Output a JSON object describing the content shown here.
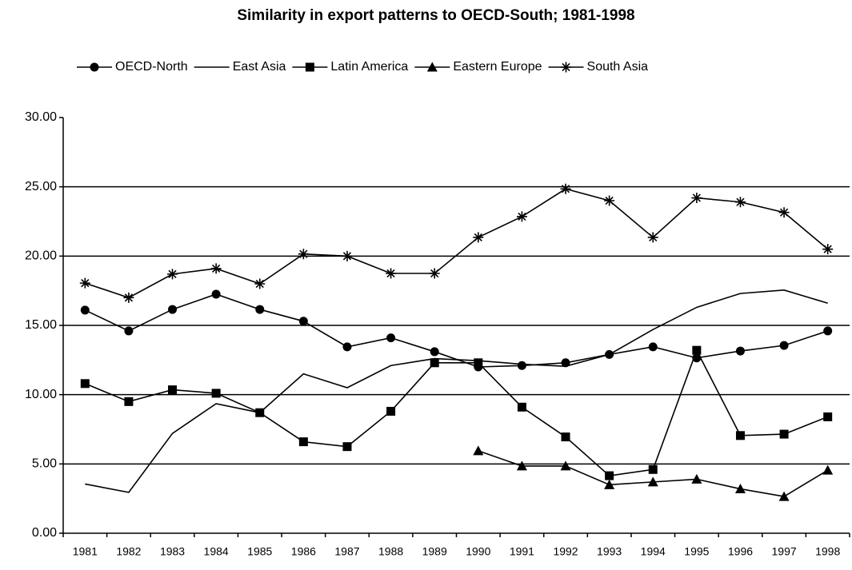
{
  "chart_data": {
    "type": "line",
    "title": "Similarity in export patterns to OECD-South; 1981-1998",
    "categories": [
      "1981",
      "1982",
      "1983",
      "1984",
      "1985",
      "1986",
      "1987",
      "1988",
      "1989",
      "1990",
      "1991",
      "1992",
      "1993",
      "1994",
      "1995",
      "1996",
      "1997",
      "1998"
    ],
    "series": [
      {
        "name": "OECD-North",
        "color": "#000000",
        "marker": "circle",
        "values": [
          16.1,
          14.6,
          16.15,
          17.25,
          16.15,
          15.3,
          13.45,
          14.1,
          13.1,
          12.0,
          12.1,
          12.3,
          12.9,
          13.45,
          12.65,
          13.15,
          13.55,
          14.6
        ]
      },
      {
        "name": "East Asia",
        "color": "#000000",
        "marker": "none",
        "values": [
          3.55,
          2.95,
          7.2,
          9.35,
          8.7,
          11.5,
          10.5,
          12.1,
          12.6,
          12.45,
          12.2,
          12.05,
          12.9,
          14.7,
          16.3,
          17.3,
          17.55,
          16.6
        ]
      },
      {
        "name": "Latin America",
        "color": "#000000",
        "marker": "square",
        "values": [
          10.8,
          9.5,
          10.35,
          10.1,
          8.7,
          6.6,
          6.25,
          8.8,
          12.3,
          12.3,
          9.1,
          6.95,
          4.15,
          4.6,
          13.2,
          7.05,
          7.15,
          8.4
        ]
      },
      {
        "name": "Eastern Europe",
        "color": "#000000",
        "marker": "triangle",
        "values": [
          null,
          null,
          null,
          null,
          null,
          null,
          null,
          null,
          null,
          5.95,
          4.85,
          4.85,
          3.5,
          3.7,
          3.9,
          3.2,
          2.65,
          4.55
        ]
      },
      {
        "name": "South Asia",
        "color": "#000000",
        "marker": "star",
        "values": [
          18.05,
          17.0,
          18.7,
          19.1,
          18.0,
          20.15,
          20.0,
          18.75,
          18.75,
          21.35,
          22.85,
          24.85,
          24.0,
          21.35,
          24.2,
          23.9,
          23.15,
          20.5
        ]
      }
    ],
    "ylim": [
      0,
      30
    ],
    "yticks": [
      {
        "value": 0,
        "label": "0.00"
      },
      {
        "value": 5,
        "label": "5.00"
      },
      {
        "value": 10,
        "label": "10.00"
      },
      {
        "value": 15,
        "label": "15.00"
      },
      {
        "value": 20,
        "label": "20.00"
      },
      {
        "value": 25,
        "label": "25.00"
      },
      {
        "value": 30,
        "label": "30.00"
      }
    ],
    "grid": true,
    "legend": "top"
  }
}
